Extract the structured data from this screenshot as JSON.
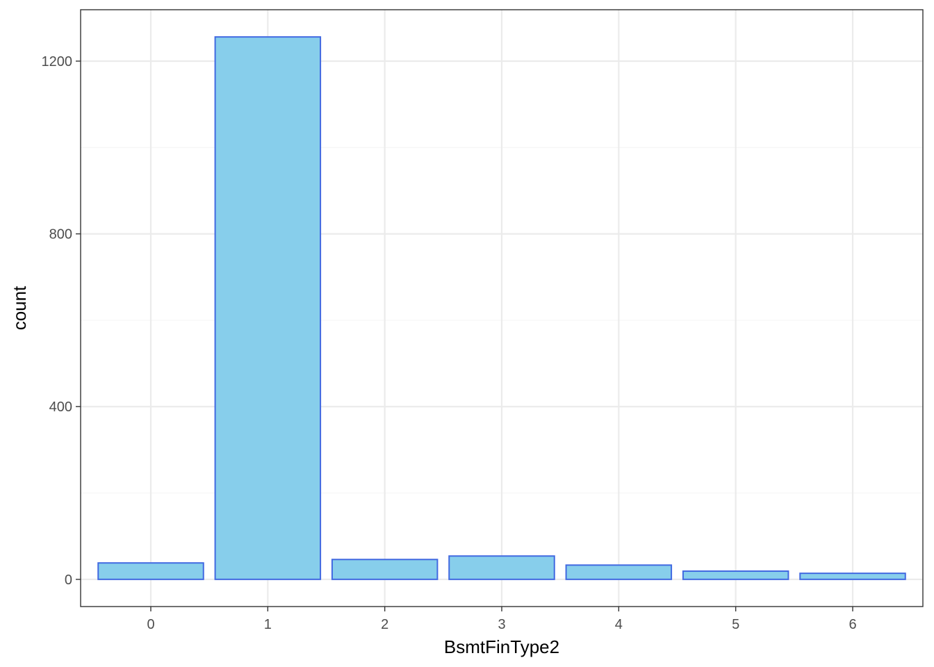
{
  "chart_data": {
    "type": "bar",
    "title": "",
    "xlabel": "BsmtFinType2",
    "ylabel": "count",
    "categories": [
      "0",
      "1",
      "2",
      "3",
      "4",
      "5",
      "6"
    ],
    "values": [
      38,
      1256,
      46,
      54,
      33,
      19,
      14
    ],
    "ylim": [
      -63,
      1319
    ],
    "yticks": [
      0,
      400,
      800,
      1200
    ],
    "yticks_labels": [
      "0",
      "400",
      "800",
      "1200"
    ],
    "grid": true,
    "legend": "none",
    "colors": {
      "bar_fill": "#87CEEB",
      "bar_stroke": "#4169E1",
      "grid_major": "#ebebeb",
      "grid_minor": "#f5f5f5",
      "panel_border": "#333333",
      "tick_text": "#4d4d4d",
      "title_text": "#000000"
    }
  }
}
